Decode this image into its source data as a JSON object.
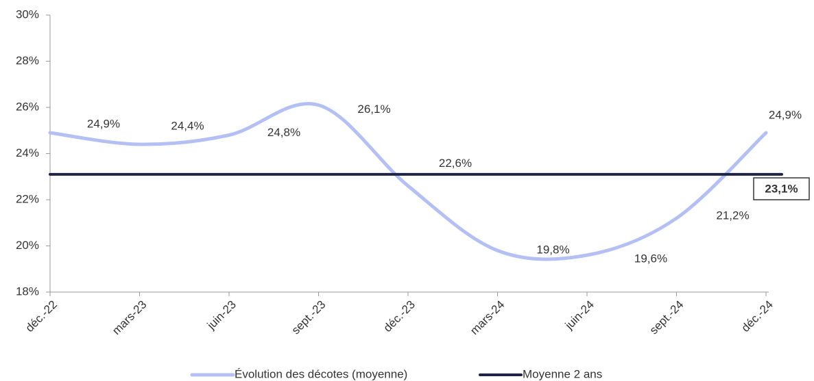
{
  "chart_data": {
    "type": "line",
    "categories": [
      "déc.-22",
      "mars-23",
      "juin-23",
      "sept.-23",
      "déc.-23",
      "mars-24",
      "juin-24",
      "sept.-24",
      "déc.-24"
    ],
    "series": [
      {
        "name": "Évolution des décotes (moyenne)",
        "color": "#b4c0f4",
        "smooth": true,
        "values": [
          24.9,
          24.4,
          24.8,
          26.1,
          22.6,
          19.8,
          19.6,
          21.2,
          24.9
        ],
        "value_labels": [
          "24,9%",
          "24,4%",
          "24,8%",
          "26,1%",
          "22,6%",
          "19,8%",
          "19,6%",
          "21,2%",
          "24,9%"
        ]
      },
      {
        "name": "Moyenne 2 ans",
        "color": "#1e2448",
        "smooth": false,
        "values": [
          23.1,
          23.1,
          23.1,
          23.1,
          23.1,
          23.1,
          23.1,
          23.1,
          23.1
        ],
        "value_labels": [
          null,
          null,
          null,
          null,
          null,
          null,
          null,
          null,
          "23,1%"
        ]
      }
    ],
    "ylim": [
      18,
      30
    ],
    "yticks": [
      {
        "value": 18,
        "label": "18%"
      },
      {
        "value": 20,
        "label": "20%"
      },
      {
        "value": 22,
        "label": "22%"
      },
      {
        "value": 24,
        "label": "24%"
      },
      {
        "value": 26,
        "label": "26%"
      },
      {
        "value": 28,
        "label": "28%"
      },
      {
        "value": 30,
        "label": "30%"
      }
    ],
    "legend": "bottom"
  }
}
